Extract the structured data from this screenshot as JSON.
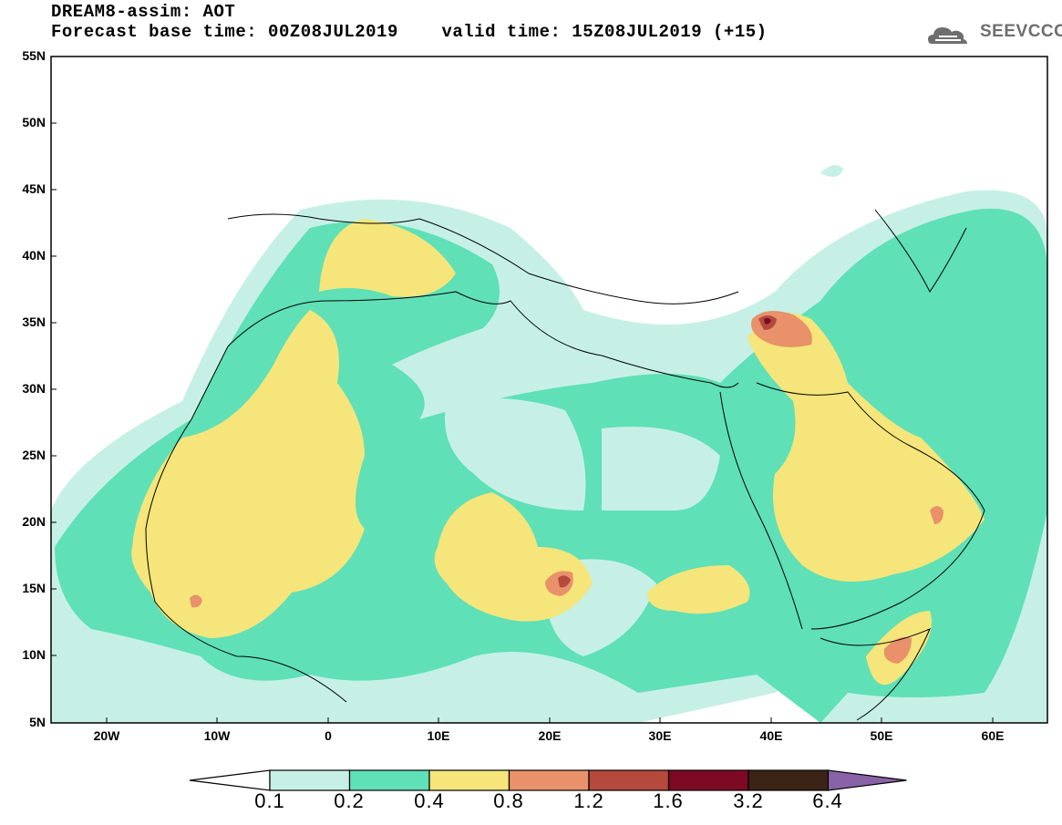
{
  "header": {
    "title": "DREAM8-assim: AOT",
    "base_time_label": "Forecast base time: 00Z08JUL2019",
    "valid_time_label": "valid time: 15Z08JUL2019 (+15)"
  },
  "logo": {
    "text": "SEEVCCC",
    "icon": "cloud-icon"
  },
  "map": {
    "lat_labels": [
      "55N",
      "50N",
      "45N",
      "40N",
      "35N",
      "30N",
      "25N",
      "20N",
      "15N",
      "10N",
      "5N"
    ],
    "lon_labels": [
      "20W",
      "10W",
      "0",
      "10E",
      "20E",
      "30E",
      "40E",
      "50E",
      "60E"
    ],
    "lat_range": [
      5,
      55
    ],
    "lon_range": [
      -25,
      65
    ]
  },
  "legend": {
    "levels": [
      "0.1",
      "0.2",
      "0.4",
      "0.8",
      "1.2",
      "1.6",
      "3.2",
      "6.4"
    ],
    "colors": [
      "#ffffff",
      "#c6f0e6",
      "#5fe0b6",
      "#f5e57a",
      "#e8916a",
      "#b5493d",
      "#7d0a22",
      "#3b2415",
      "#8a62a8"
    ]
  }
}
